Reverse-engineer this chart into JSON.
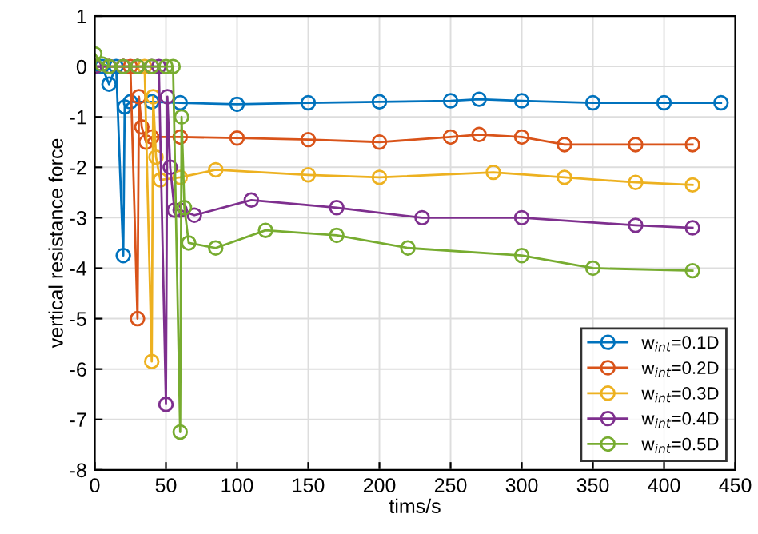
{
  "chart_data": {
    "type": "line",
    "xlabel": "tims/s",
    "ylabel": "vertical resistance force",
    "xlim": [
      0,
      450
    ],
    "ylim": [
      -8,
      1
    ],
    "xticks": [
      0,
      50,
      100,
      150,
      200,
      250,
      300,
      350,
      400,
      450
    ],
    "yticks": [
      -8,
      -7,
      -6,
      -5,
      -4,
      -3,
      -2,
      -1,
      0,
      1
    ],
    "grid": true,
    "legend": "bottom right",
    "marker": "circle",
    "line_style": "solid",
    "series": [
      {
        "name": "w$_{int}$=0.1D",
        "color": "#0072bd",
        "x": [
          0,
          5,
          10,
          15,
          20,
          21,
          25,
          40,
          60,
          100,
          150,
          200,
          250,
          270,
          300,
          350,
          400,
          440
        ],
        "values": [
          0,
          0,
          -0.35,
          0,
          -3.75,
          -0.8,
          -0.7,
          -0.7,
          -0.72,
          -0.75,
          -0.72,
          -0.7,
          -0.68,
          -0.65,
          -0.68,
          -0.72,
          -0.72,
          -0.72
        ]
      },
      {
        "name": "w$_{int}$=0.2D",
        "color": "#d95319",
        "x": [
          0,
          10,
          20,
          25,
          30,
          31,
          33,
          36,
          40,
          60,
          100,
          150,
          200,
          250,
          270,
          300,
          330,
          380,
          420
        ],
        "values": [
          0,
          0,
          0,
          0,
          -5.0,
          -0.6,
          -1.2,
          -1.5,
          -1.4,
          -1.4,
          -1.42,
          -1.45,
          -1.5,
          -1.4,
          -1.35,
          -1.4,
          -1.55,
          -1.55,
          -1.55
        ]
      },
      {
        "name": "w$_{int}$=0.3D",
        "color": "#edb120",
        "x": [
          20,
          30,
          35,
          40,
          41,
          43,
          46,
          60,
          85,
          150,
          200,
          280,
          330,
          380,
          420
        ],
        "values": [
          0,
          0,
          0,
          -5.85,
          -0.6,
          -1.8,
          -2.25,
          -2.2,
          -2.05,
          -2.15,
          -2.2,
          -2.1,
          -2.2,
          -2.3,
          -2.35
        ]
      },
      {
        "name": "w$_{int}$=0.4D",
        "color": "#7e2f8e",
        "x": [
          0,
          10,
          20,
          30,
          40,
          45,
          50,
          51,
          53,
          56,
          60,
          70,
          110,
          170,
          230,
          300,
          380,
          420
        ],
        "values": [
          0,
          0,
          0,
          0,
          0,
          0,
          -6.7,
          -0.6,
          -2.0,
          -2.85,
          -2.85,
          -2.95,
          -2.65,
          -2.8,
          -3.0,
          -3.0,
          -3.15,
          -3.2
        ]
      },
      {
        "name": "w$_{int}$=0.5D",
        "color": "#77ac30",
        "x": [
          0,
          5,
          10,
          20,
          30,
          40,
          50,
          55,
          60,
          61,
          63,
          66,
          85,
          120,
          170,
          220,
          300,
          350,
          420
        ],
        "values": [
          0.25,
          0.05,
          0,
          0,
          0,
          0,
          0,
          0,
          -7.25,
          -1.0,
          -2.8,
          -3.5,
          -3.6,
          -3.25,
          -3.35,
          -3.6,
          -3.75,
          -4.0,
          -4.05
        ]
      }
    ]
  }
}
